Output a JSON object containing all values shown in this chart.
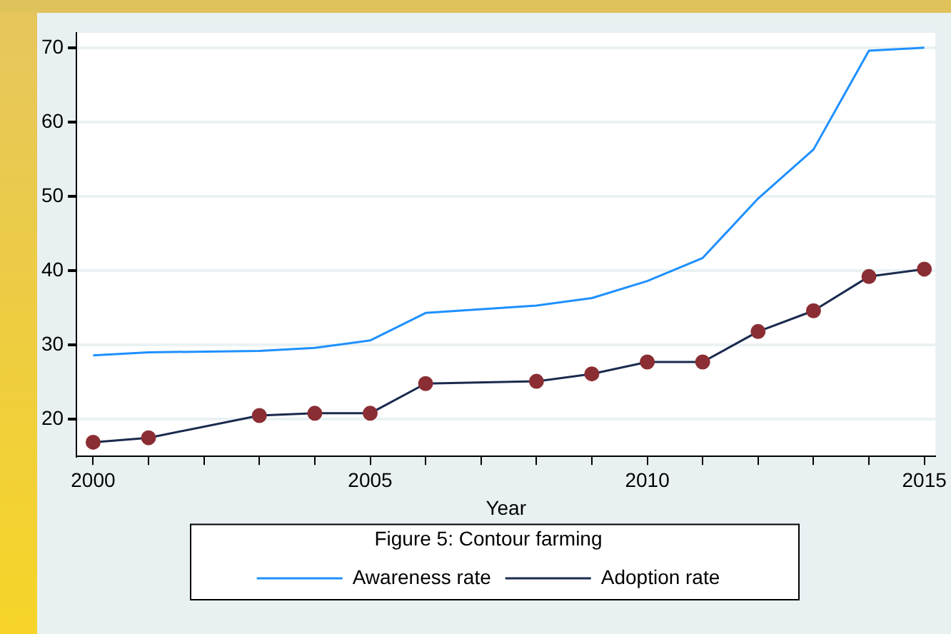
{
  "chart_data": {
    "type": "line",
    "xlabel": "Year",
    "legend_title": "Figure 5: Contour farming",
    "x": [
      2000,
      2001,
      2002,
      2003,
      2004,
      2005,
      2006,
      2007,
      2008,
      2009,
      2010,
      2011,
      2012,
      2013,
      2014,
      2015
    ],
    "series": [
      {
        "name": "Awareness rate",
        "color": "#1e90ff",
        "marker": "none",
        "values": [
          28.6,
          29.0,
          null,
          29.2,
          29.6,
          30.6,
          34.3,
          null,
          35.3,
          36.3,
          38.6,
          41.7,
          49.7,
          56.3,
          69.6,
          70
        ]
      },
      {
        "name": "Adoption rate",
        "color": "#1a2a4e",
        "marker": "circle",
        "values": [
          16.9,
          17.5,
          null,
          20.5,
          20.8,
          20.8,
          24.8,
          null,
          25.1,
          26.1,
          27.7,
          27.7,
          31.8,
          34.6,
          39.2,
          40.2
        ]
      }
    ],
    "xlim": [
      1999.7,
      2015.2
    ],
    "xticks": [
      2000,
      {
        "value": 2001,
        "label": null
      },
      {
        "value": 2002,
        "label": null
      },
      {
        "value": 2003,
        "label": null
      },
      {
        "value": 2004,
        "label": null
      },
      2005,
      {
        "value": 2006,
        "label": null
      },
      {
        "value": 2007,
        "label": null
      },
      {
        "value": 2008,
        "label": null
      },
      {
        "value": 2009,
        "label": null
      },
      2010,
      {
        "value": 2011,
        "label": null
      },
      {
        "value": 2012,
        "label": null
      },
      {
        "value": 2013,
        "label": null
      },
      {
        "value": 2014,
        "label": null
      },
      2015
    ],
    "ylim": [
      15,
      72
    ],
    "yticks": [
      20,
      30,
      40,
      50,
      60,
      70
    ],
    "grid": "y",
    "legend": "bottom"
  }
}
